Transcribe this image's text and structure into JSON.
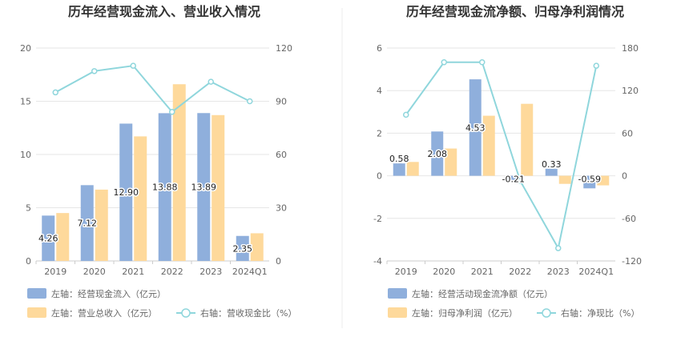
{
  "chart_data": [
    {
      "type": "bar",
      "title": "历年经营现金流入、营业收入情况",
      "categories": [
        "2019",
        "2020",
        "2021",
        "2022",
        "2023",
        "2024Q1"
      ],
      "ylim_left": [
        0,
        20
      ],
      "ylim_right": [
        0,
        120
      ],
      "yticks_left": [
        "0",
        "5",
        "10",
        "15",
        "20"
      ],
      "yticks_right": [
        "0",
        "30",
        "60",
        "90",
        "120"
      ],
      "series": [
        {
          "name": "左轴：经营现金流入（亿元）",
          "axis": "left",
          "kind": "bar",
          "color": "#8fafdc",
          "values": [
            4.26,
            7.12,
            12.9,
            13.88,
            13.89,
            2.35
          ],
          "labels": [
            "4.26",
            "7.12",
            "12.90",
            "13.88",
            "13.89",
            "2.35"
          ]
        },
        {
          "name": "左轴：营业总收入（亿元）",
          "axis": "left",
          "kind": "bar",
          "color": "#fed99b",
          "values": [
            4.5,
            6.7,
            11.7,
            16.6,
            13.7,
            2.6
          ]
        },
        {
          "name": "右轴：营收现金比（%）",
          "axis": "right",
          "kind": "line",
          "color": "#8fd6dc",
          "values": [
            95,
            107,
            110,
            84,
            101,
            90
          ]
        }
      ],
      "grid": true,
      "legend_position": "bottom"
    },
    {
      "type": "bar",
      "title": "历年经营现金流净额、归母净利润情况",
      "categories": [
        "2019",
        "2020",
        "2021",
        "2022",
        "2023",
        "2024Q1"
      ],
      "ylim_left": [
        -4,
        6
      ],
      "ylim_right": [
        -120,
        180
      ],
      "yticks_left": [
        "-4",
        "-2",
        "0",
        "2",
        "4",
        "6"
      ],
      "yticks_right": [
        "-120",
        "-60",
        "0",
        "60",
        "120",
        "180"
      ],
      "series": [
        {
          "name": "左轴：经营活动现金流净额（亿元）",
          "axis": "left",
          "kind": "bar",
          "color": "#8fafdc",
          "values": [
            0.58,
            2.08,
            4.53,
            -0.21,
            0.33,
            -0.59
          ],
          "labels": [
            "0.58",
            "2.08",
            "4.53",
            "-0.21",
            "0.33",
            "-0.59"
          ]
        },
        {
          "name": "左轴：归母净利润（亿元）",
          "axis": "left",
          "kind": "bar",
          "color": "#fed99b",
          "values": [
            0.65,
            1.28,
            2.82,
            3.38,
            -0.38,
            -0.45
          ]
        },
        {
          "name": "右轴：净现比（%）",
          "axis": "right",
          "kind": "line",
          "color": "#8fd6dc",
          "values": [
            86,
            160,
            160,
            -7,
            -102,
            155
          ]
        }
      ],
      "grid": true,
      "legend_position": "bottom"
    }
  ]
}
